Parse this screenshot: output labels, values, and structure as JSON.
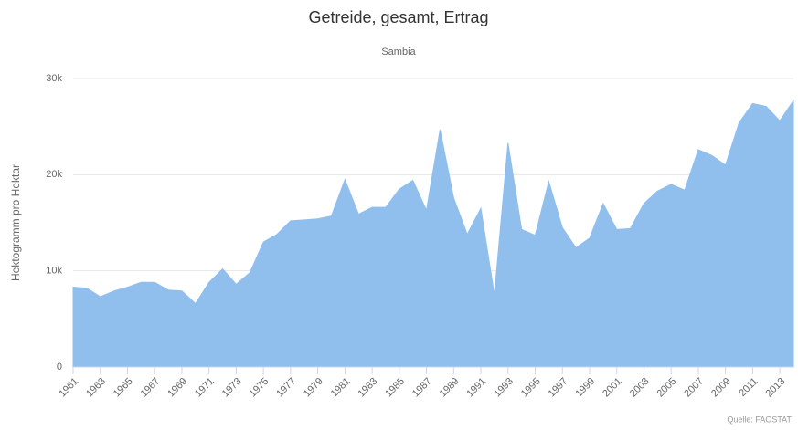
{
  "chart_data": {
    "type": "area",
    "title": "Getreide, gesamt, Ertrag",
    "subtitle": "Sambia",
    "y_label": "Hektogramm pro Hektar",
    "credit": "Quelle: FAOSTAT",
    "x": [
      1961,
      1962,
      1963,
      1964,
      1965,
      1966,
      1967,
      1968,
      1969,
      1970,
      1971,
      1972,
      1973,
      1974,
      1975,
      1976,
      1977,
      1978,
      1979,
      1980,
      1981,
      1982,
      1983,
      1984,
      1985,
      1986,
      1987,
      1988,
      1989,
      1990,
      1991,
      1992,
      1993,
      1994,
      1995,
      1996,
      1997,
      1998,
      1999,
      2000,
      2001,
      2002,
      2003,
      2004,
      2005,
      2006,
      2007,
      2008,
      2009,
      2010,
      2011,
      2012,
      2013,
      2014
    ],
    "series": [
      {
        "name": "Sambia",
        "color": "#90bfee",
        "values": [
          8300,
          8200,
          7300,
          7900,
          8300,
          8800,
          8800,
          8000,
          7900,
          6600,
          8800,
          10200,
          8600,
          9800,
          13000,
          13800,
          15200,
          15300,
          15400,
          15700,
          19500,
          15900,
          16600,
          16600,
          18500,
          19400,
          16300,
          24700,
          17600,
          13800,
          16500,
          7500,
          23300,
          14300,
          13700,
          19300,
          14500,
          12400,
          13400,
          17000,
          14300,
          14400,
          17000,
          18300,
          19000,
          18400,
          22600,
          22000,
          21000,
          25400,
          27400,
          27100,
          25600,
          27700
        ]
      }
    ],
    "xlim": [
      1961,
      2014
    ],
    "xticks": [
      1961,
      1963,
      1965,
      1967,
      1969,
      1971,
      1973,
      1975,
      1977,
      1979,
      1981,
      1983,
      1985,
      1987,
      1989,
      1991,
      1993,
      1995,
      1997,
      1999,
      2001,
      2003,
      2005,
      2007,
      2009,
      2011,
      2013
    ],
    "ylim": [
      0,
      30000
    ],
    "yticks": [
      0,
      {
        "value": 10000,
        "label": "10k"
      },
      {
        "value": 20000,
        "label": "20k"
      },
      {
        "value": 30000,
        "label": "30k"
      }
    ],
    "grid": true
  }
}
